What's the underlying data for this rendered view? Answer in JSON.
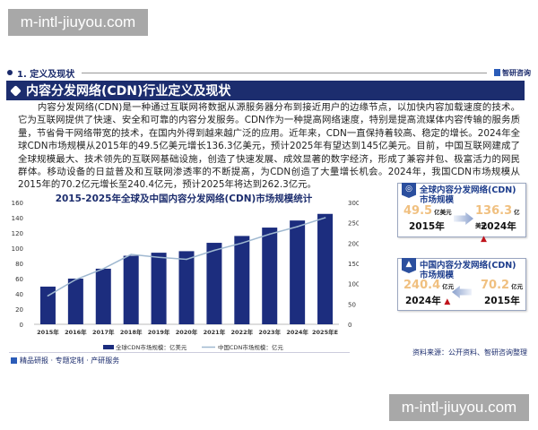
{
  "watermark": "m-intl-jiuyou.com",
  "section": {
    "label": "1. 定义及现状",
    "logo": "智研咨询"
  },
  "title": "内容分发网络(CDN)行业定义及现状",
  "paragraph": "内容分发网络(CDN)是一种通过互联网将数据从源服务器分布到接近用户的边缘节点，以加快内容加载速度的技术。它为互联网提供了快速、安全和可靠的内容分发服务。CDN作为一种提高网络速度，特别是提高流媒体内容传输的服务质量，节省骨干网络带宽的技术，在国内外得到越来越广泛的应用。近年来，CDN一直保持着较高、稳定的增长。2024年全球CDN市场规模从2015年的49.5亿美元增长136.3亿美元，预计2025年有望达到145亿美元。目前，中国互联网建成了全球规模最大、技术领先的互联网基础设施，创造了快速发展、成效显著的数字经济，形成了兼容并包、极富活力的网民群体。移动设备的日益普及和互联网渗透率的不断提高，为CDN创造了大量增长机会。2024年，我国CDN市场规模从2015年的70.2亿元增长至240.4亿元，预计2025年将达到262.3亿元。",
  "chart_data": {
    "type": "bar+line",
    "title": "2015-2025年全球及中国内容分发网络(CDN)市场规模统计",
    "categories": [
      "2015年",
      "2016年",
      "2017年",
      "2018年",
      "2019年",
      "2020年",
      "2021年",
      "2022年",
      "2023年",
      "2024年",
      "2025年E"
    ],
    "series": [
      {
        "name": "全球CDN市场规模：亿美元",
        "type": "bar",
        "axis": "left",
        "color": "#1c2d7e",
        "values": [
          49.5,
          60,
          73,
          90,
          94,
          96,
          107,
          116,
          127,
          136.3,
          145
        ]
      },
      {
        "name": "中国CDN市场规模：亿元",
        "type": "line",
        "axis": "right",
        "color": "#9fb8d0",
        "values": [
          70.2,
          110,
          137,
          172,
          165,
          160,
          182,
          200,
          222,
          240.4,
          262.3
        ]
      }
    ],
    "y_left": {
      "range": [
        0,
        160
      ],
      "ticks": [
        "0",
        "20",
        "40",
        "60",
        "80",
        "100",
        "120",
        "140",
        "160"
      ]
    },
    "y_right": {
      "range": [
        0,
        300
      ],
      "ticks": [
        "0",
        "50",
        "100",
        "150",
        "200",
        "250",
        "300"
      ]
    },
    "grid": false,
    "legend": "bottom"
  },
  "footer": "精品研报 · 专题定制 · 产研服务",
  "source": "资料来源：公开资料、智研咨询整理",
  "cards": [
    {
      "title": "全球内容分发网络(CDN)市场规模",
      "from_value": "49.5",
      "from_unit": "亿美元",
      "from_year": "2015年",
      "to_value": "136.3",
      "to_unit": "亿美元",
      "to_year": "2024年"
    },
    {
      "title": "中国内容分发网络(CDN)市场规模",
      "from_value": "70.2",
      "from_unit": "亿元",
      "from_year": "2015年",
      "to_value": "240.4",
      "to_unit": "亿元",
      "to_year": "2024年"
    }
  ],
  "up_arrow": "▲"
}
